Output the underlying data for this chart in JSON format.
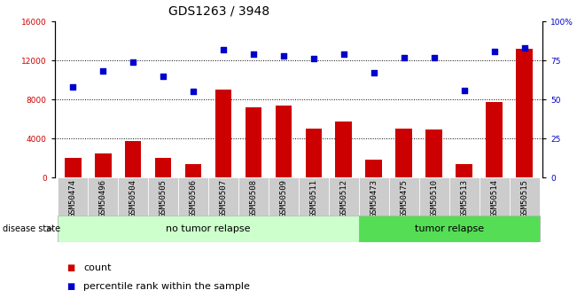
{
  "title": "GDS1263 / 3948",
  "categories": [
    "GSM50474",
    "GSM50496",
    "GSM50504",
    "GSM50505",
    "GSM50506",
    "GSM50507",
    "GSM50508",
    "GSM50509",
    "GSM50511",
    "GSM50512",
    "GSM50473",
    "GSM50475",
    "GSM50510",
    "GSM50513",
    "GSM50514",
    "GSM50515"
  ],
  "counts": [
    2000,
    2500,
    3700,
    2000,
    1400,
    9000,
    7200,
    7400,
    5000,
    5700,
    1800,
    5000,
    4900,
    1400,
    7700,
    13200
  ],
  "percentiles": [
    58,
    68,
    74,
    65,
    55,
    82,
    79,
    78,
    76,
    79,
    67,
    77,
    77,
    56,
    81,
    83
  ],
  "bar_color": "#cc0000",
  "dot_color": "#0000cc",
  "left_ylim": [
    0,
    16000
  ],
  "left_yticks": [
    0,
    4000,
    8000,
    12000,
    16000
  ],
  "right_ylim": [
    0,
    100
  ],
  "right_yticks": [
    0,
    25,
    50,
    75,
    100
  ],
  "right_ytick_labels": [
    "0",
    "25",
    "50",
    "75",
    "100%"
  ],
  "group1_label": "no tumor relapse",
  "group2_label": "tumor relapse",
  "group1_count": 10,
  "group2_count": 6,
  "disease_state_label": "disease state",
  "legend_count_label": "count",
  "legend_pct_label": "percentile rank within the sample",
  "bg_color": "#ffffff",
  "group1_bg": "#ccffcc",
  "group2_bg": "#55dd55",
  "bar_area_bg": "#cccccc",
  "title_fontsize": 10,
  "tick_fontsize": 6.5,
  "label_fontsize": 8
}
